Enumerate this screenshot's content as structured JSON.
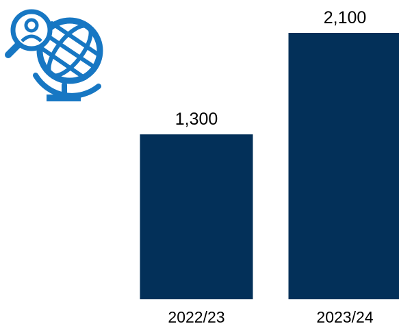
{
  "icon": {
    "name": "globe-search-icon",
    "color": "#1777c3"
  },
  "chart_data": {
    "type": "bar",
    "categories": [
      "2022/23",
      "2023/24"
    ],
    "values": [
      1300,
      2100
    ],
    "value_labels": [
      "1,300",
      "2,100"
    ],
    "title": "",
    "xlabel": "",
    "ylabel": "",
    "ylim": [
      0,
      2100
    ],
    "grid": false,
    "legend": "none",
    "bar_color": "#033059"
  }
}
